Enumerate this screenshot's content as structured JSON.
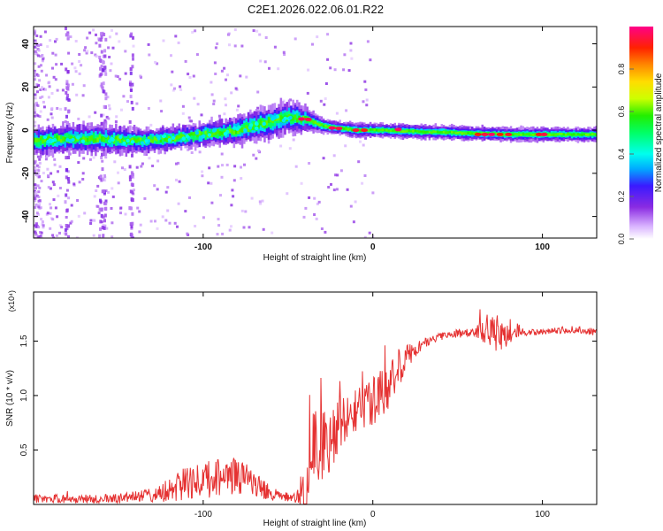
{
  "title": "C2E1.2026.022.06.01.R22",
  "chart_data": [
    {
      "type": "heatmap",
      "title": "C2E1.2026.022.06.01.R22",
      "xlabel": "Height of straight line (km)",
      "ylabel": "Frequency (Hz)",
      "xlim": [
        -200,
        132
      ],
      "ylim": [
        -50,
        48
      ],
      "xticks": [
        -100,
        0,
        100
      ],
      "yticks": [
        -40,
        -20,
        0,
        20,
        40
      ],
      "xtick_labels": [
        "-100",
        "0",
        "100"
      ],
      "ytick_labels": [
        "-40",
        "-20",
        "0",
        "20",
        "40"
      ],
      "colorbar": {
        "label": "Normalized spectral amplitude",
        "range": [
          0,
          1
        ],
        "ticks": [
          0.0,
          0.2,
          0.4,
          0.6,
          0.8
        ],
        "tick_labels": [
          "0.0",
          "0.2",
          "0.4",
          "0.6",
          "0.8"
        ],
        "colormap": "rainbow"
      },
      "ridge": {
        "x": [
          -200,
          -180,
          -160,
          -140,
          -120,
          -100,
          -80,
          -60,
          -50,
          -40,
          -30,
          -20,
          -10,
          0,
          20,
          40,
          60,
          80,
          100,
          120,
          132
        ],
        "center_hz": [
          -5,
          -4,
          -4,
          -5,
          -4,
          -2,
          0,
          4,
          6,
          5,
          2,
          1,
          0,
          0,
          -0.5,
          -1,
          -1.5,
          -2,
          -2,
          -2,
          -2
        ],
        "width_hz": [
          6,
          6,
          6,
          5,
          5,
          5,
          6,
          7,
          7,
          5,
          3,
          3,
          3,
          3,
          3,
          3,
          3,
          3,
          3,
          3,
          3
        ]
      }
    },
    {
      "type": "line",
      "xlabel": "Height of straight line (km)",
      "ylabel": "SNR (10 * v/v)",
      "y_multiplier": "(x10⁴)",
      "xlim": [
        -200,
        132
      ],
      "ylim": [
        0,
        1.95
      ],
      "xticks": [
        -100,
        0,
        100
      ],
      "yticks": [
        0.5,
        1.0,
        1.5
      ],
      "xtick_labels": [
        "-100",
        "0",
        "100"
      ],
      "ytick_labels": [
        "0.5",
        "1.0",
        "1.5"
      ],
      "series": [
        {
          "name": "SNR",
          "color": "#e53232",
          "x": [
            -200,
            -160,
            -145,
            -130,
            -120,
            -110,
            -100,
            -90,
            -80,
            -70,
            -60,
            -55,
            -45,
            -40,
            -35,
            -30,
            -25,
            -20,
            -15,
            -10,
            -5,
            0,
            5,
            10,
            15,
            20,
            25,
            30,
            35,
            40,
            50,
            60,
            70,
            75,
            80,
            90,
            100,
            110,
            120,
            132
          ],
          "y": [
            0.05,
            0.05,
            0.06,
            0.08,
            0.12,
            0.2,
            0.22,
            0.25,
            0.26,
            0.2,
            0.1,
            0.07,
            0.06,
            0.1,
            0.55,
            0.5,
            0.6,
            0.7,
            0.8,
            0.85,
            0.9,
            0.95,
            1.0,
            1.1,
            1.25,
            1.35,
            1.42,
            1.48,
            1.52,
            1.55,
            1.57,
            1.58,
            1.6,
            1.55,
            1.6,
            1.58,
            1.58,
            1.6,
            1.6,
            1.58
          ],
          "noise": [
            0.04,
            0.04,
            0.05,
            0.07,
            0.12,
            0.15,
            0.17,
            0.17,
            0.17,
            0.12,
            0.07,
            0.05,
            0.05,
            0.2,
            0.35,
            0.35,
            0.3,
            0.25,
            0.2,
            0.2,
            0.2,
            0.22,
            0.25,
            0.25,
            0.18,
            0.12,
            0.08,
            0.05,
            0.04,
            0.04,
            0.04,
            0.05,
            0.15,
            0.18,
            0.12,
            0.03,
            0.03,
            0.03,
            0.04,
            0.03
          ]
        }
      ]
    }
  ]
}
